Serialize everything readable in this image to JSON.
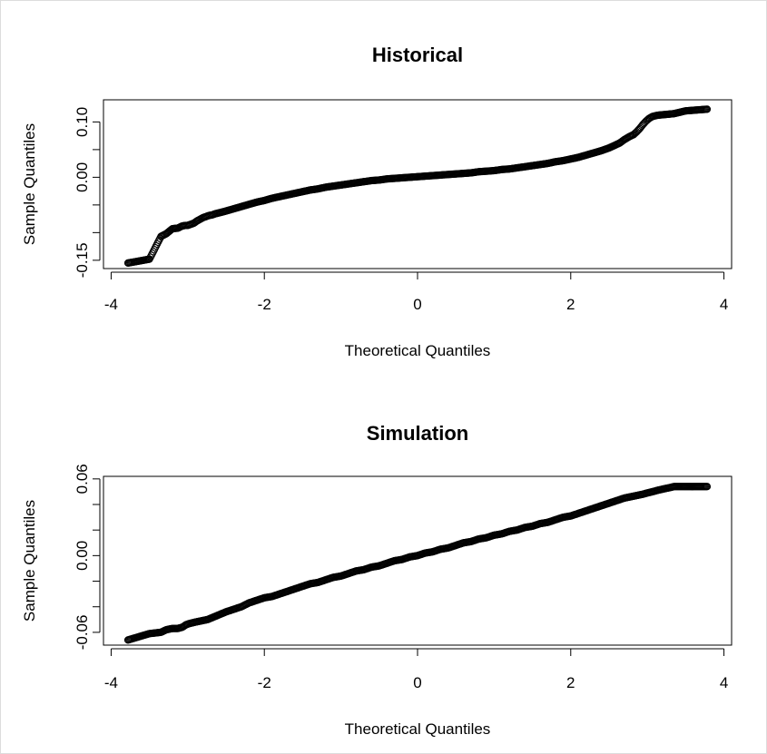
{
  "chart_data": [
    {
      "type": "scatter",
      "title": "Historical",
      "xlabel": "Theoretical Quantiles",
      "ylabel": "Sample Quantiles",
      "xlim": [
        -4.1,
        4.1
      ],
      "ylim": [
        -0.165,
        0.14
      ],
      "xticks": [
        -4,
        -2,
        0,
        2,
        4
      ],
      "yticks": [
        -0.15,
        -0.1,
        -0.05,
        0.0,
        0.05,
        0.1
      ],
      "yticklabels": [
        "-0.15",
        "",
        "",
        "0.00",
        "",
        "0.10"
      ],
      "xticklabels": [
        "-4",
        "-2",
        "0",
        "2",
        "4"
      ],
      "grid": false,
      "legend": "none",
      "points": [
        [
          -3.78,
          -0.155
        ],
        [
          -3.5,
          -0.148
        ],
        [
          -3.35,
          -0.107
        ],
        [
          -3.28,
          -0.102
        ],
        [
          -3.2,
          -0.093
        ],
        [
          -3.13,
          -0.092
        ],
        [
          -3.07,
          -0.088
        ],
        [
          -3.03,
          -0.087
        ],
        [
          -3.0,
          -0.087
        ],
        [
          -2.96,
          -0.085
        ],
        [
          -2.92,
          -0.083
        ],
        [
          -2.88,
          -0.079
        ],
        [
          -2.84,
          -0.076
        ],
        [
          -2.8,
          -0.073
        ],
        [
          -2.76,
          -0.071
        ],
        [
          -2.72,
          -0.069
        ],
        [
          -2.68,
          -0.068
        ],
        [
          -2.64,
          -0.066
        ],
        [
          -2.58,
          -0.064
        ],
        [
          -2.5,
          -0.061
        ],
        [
          -2.4,
          -0.057
        ],
        [
          -2.3,
          -0.053
        ],
        [
          -2.2,
          -0.049
        ],
        [
          -2.1,
          -0.045
        ],
        [
          -2.0,
          -0.042
        ],
        [
          -1.9,
          -0.038
        ],
        [
          -1.8,
          -0.035
        ],
        [
          -1.7,
          -0.032
        ],
        [
          -1.6,
          -0.029
        ],
        [
          -1.5,
          -0.026
        ],
        [
          -1.4,
          -0.023
        ],
        [
          -1.3,
          -0.021
        ],
        [
          -1.2,
          -0.018
        ],
        [
          -1.1,
          -0.016
        ],
        [
          -1.0,
          -0.014
        ],
        [
          -0.9,
          -0.012
        ],
        [
          -0.8,
          -0.01
        ],
        [
          -0.7,
          -0.008
        ],
        [
          -0.6,
          -0.006
        ],
        [
          -0.5,
          -0.005
        ],
        [
          -0.4,
          -0.003
        ],
        [
          -0.3,
          -0.002
        ],
        [
          -0.2,
          -0.001
        ],
        [
          -0.1,
          0.0
        ],
        [
          0.0,
          0.001
        ],
        [
          0.1,
          0.002
        ],
        [
          0.2,
          0.003
        ],
        [
          0.3,
          0.004
        ],
        [
          0.4,
          0.005
        ],
        [
          0.5,
          0.006
        ],
        [
          0.6,
          0.007
        ],
        [
          0.7,
          0.008
        ],
        [
          0.8,
          0.01
        ],
        [
          0.9,
          0.011
        ],
        [
          1.0,
          0.012
        ],
        [
          1.1,
          0.014
        ],
        [
          1.2,
          0.015
        ],
        [
          1.3,
          0.017
        ],
        [
          1.4,
          0.019
        ],
        [
          1.5,
          0.021
        ],
        [
          1.6,
          0.023
        ],
        [
          1.7,
          0.025
        ],
        [
          1.8,
          0.028
        ],
        [
          1.9,
          0.03
        ],
        [
          2.0,
          0.033
        ],
        [
          2.1,
          0.036
        ],
        [
          2.2,
          0.04
        ],
        [
          2.3,
          0.044
        ],
        [
          2.4,
          0.048
        ],
        [
          2.5,
          0.053
        ],
        [
          2.58,
          0.058
        ],
        [
          2.64,
          0.062
        ],
        [
          2.7,
          0.068
        ],
        [
          2.76,
          0.073
        ],
        [
          2.82,
          0.077
        ],
        [
          2.86,
          0.082
        ],
        [
          2.9,
          0.088
        ],
        [
          2.94,
          0.095
        ],
        [
          2.98,
          0.101
        ],
        [
          3.02,
          0.106
        ],
        [
          3.07,
          0.11
        ],
        [
          3.13,
          0.112
        ],
        [
          3.2,
          0.113
        ],
        [
          3.28,
          0.114
        ],
        [
          3.35,
          0.115
        ],
        [
          3.5,
          0.12
        ],
        [
          3.78,
          0.123
        ]
      ]
    },
    {
      "type": "scatter",
      "title": "Simulation",
      "xlabel": "Theoretical Quantiles",
      "ylabel": "Sample Quantiles",
      "xlim": [
        -4.1,
        4.1
      ],
      "ylim": [
        -0.07,
        0.062
      ],
      "xticks": [
        -4,
        -2,
        0,
        2,
        4
      ],
      "yticks": [
        -0.06,
        -0.04,
        -0.02,
        0.0,
        0.02,
        0.04,
        0.06
      ],
      "yticklabels": [
        "-0.06",
        "",
        "",
        "0.00",
        "",
        "",
        "0.06"
      ],
      "xticklabels": [
        "-4",
        "-2",
        "0",
        "2",
        "4"
      ],
      "grid": false,
      "legend": "none",
      "points": [
        [
          -3.78,
          -0.066
        ],
        [
          -3.5,
          -0.061
        ],
        [
          -3.35,
          -0.06
        ],
        [
          -3.28,
          -0.058
        ],
        [
          -3.2,
          -0.057
        ],
        [
          -3.13,
          -0.057
        ],
        [
          -3.07,
          -0.056
        ],
        [
          -3.02,
          -0.054
        ],
        [
          -2.97,
          -0.053
        ],
        [
          -2.9,
          -0.052
        ],
        [
          -2.82,
          -0.051
        ],
        [
          -2.74,
          -0.05
        ],
        [
          -2.66,
          -0.048
        ],
        [
          -2.58,
          -0.046
        ],
        [
          -2.5,
          -0.044
        ],
        [
          -2.4,
          -0.042
        ],
        [
          -2.3,
          -0.04
        ],
        [
          -2.2,
          -0.037
        ],
        [
          -2.1,
          -0.035
        ],
        [
          -2.0,
          -0.033
        ],
        [
          -1.9,
          -0.032
        ],
        [
          -1.8,
          -0.03
        ],
        [
          -1.7,
          -0.028
        ],
        [
          -1.6,
          -0.026
        ],
        [
          -1.5,
          -0.024
        ],
        [
          -1.4,
          -0.022
        ],
        [
          -1.3,
          -0.021
        ],
        [
          -1.2,
          -0.019
        ],
        [
          -1.1,
          -0.017
        ],
        [
          -1.0,
          -0.016
        ],
        [
          -0.9,
          -0.014
        ],
        [
          -0.8,
          -0.012
        ],
        [
          -0.7,
          -0.011
        ],
        [
          -0.6,
          -0.009
        ],
        [
          -0.5,
          -0.008
        ],
        [
          -0.4,
          -0.006
        ],
        [
          -0.3,
          -0.004
        ],
        [
          -0.2,
          -0.003
        ],
        [
          -0.1,
          -0.001
        ],
        [
          0.0,
          0.0
        ],
        [
          0.1,
          0.002
        ],
        [
          0.2,
          0.003
        ],
        [
          0.3,
          0.005
        ],
        [
          0.4,
          0.006
        ],
        [
          0.5,
          0.008
        ],
        [
          0.6,
          0.01
        ],
        [
          0.7,
          0.011
        ],
        [
          0.8,
          0.013
        ],
        [
          0.9,
          0.014
        ],
        [
          1.0,
          0.016
        ],
        [
          1.1,
          0.017
        ],
        [
          1.2,
          0.019
        ],
        [
          1.3,
          0.02
        ],
        [
          1.4,
          0.022
        ],
        [
          1.5,
          0.023
        ],
        [
          1.6,
          0.025
        ],
        [
          1.7,
          0.026
        ],
        [
          1.8,
          0.028
        ],
        [
          1.9,
          0.03
        ],
        [
          2.0,
          0.031
        ],
        [
          2.1,
          0.033
        ],
        [
          2.2,
          0.035
        ],
        [
          2.3,
          0.037
        ],
        [
          2.4,
          0.039
        ],
        [
          2.5,
          0.041
        ],
        [
          2.6,
          0.043
        ],
        [
          2.7,
          0.045
        ],
        [
          2.78,
          0.046
        ],
        [
          2.86,
          0.047
        ],
        [
          2.94,
          0.048
        ],
        [
          3.0,
          0.049
        ],
        [
          3.07,
          0.05
        ],
        [
          3.13,
          0.051
        ],
        [
          3.2,
          0.052
        ],
        [
          3.28,
          0.053
        ],
        [
          3.35,
          0.054
        ],
        [
          3.5,
          0.054
        ],
        [
          3.78,
          0.054
        ]
      ]
    }
  ]
}
